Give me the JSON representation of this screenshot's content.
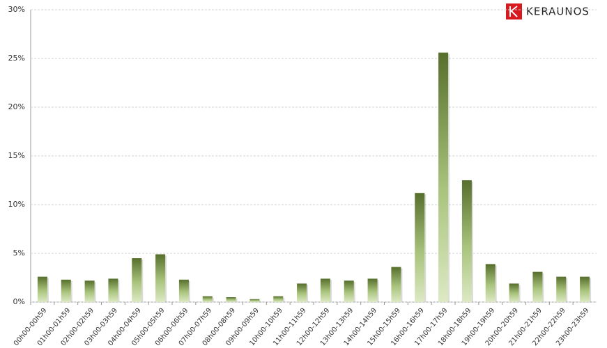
{
  "brand": "KERAUNOS",
  "chart_data": {
    "type": "bar",
    "categories": [
      "00h00-00h59",
      "01h00-01h59",
      "02h00-02h59",
      "03h00-03h59",
      "04h00-04h59",
      "05h00-05h59",
      "06h00-06h59",
      "07h00-07h59",
      "08h00-08h59",
      "09h00-09h59",
      "10h00-10h59",
      "11h00-11h59",
      "12h00-12h59",
      "13h00-13h59",
      "14h00-14h59",
      "15h00-15h59",
      "16h00-16h59",
      "17h00-17h59",
      "18h00-18h59",
      "19h00-19h59",
      "20h00-20h59",
      "21h00-21h59",
      "22h00-22h59",
      "23h00-23h59"
    ],
    "values": [
      2.6,
      2.3,
      2.2,
      2.4,
      4.5,
      4.9,
      2.3,
      0.6,
      0.5,
      0.3,
      0.6,
      1.9,
      2.4,
      2.2,
      2.4,
      3.6,
      11.2,
      25.6,
      12.5,
      3.9,
      1.9,
      3.1,
      2.6,
      2.6
    ],
    "color": "#566f2c",
    "ylim": [
      0,
      30
    ],
    "yticks": [
      {
        "value": 0,
        "label": "0%"
      },
      {
        "value": 5,
        "label": "5%"
      },
      {
        "value": 10,
        "label": "10%"
      },
      {
        "value": 15,
        "label": "15%"
      },
      {
        "value": 20,
        "label": "20%"
      },
      {
        "value": 25,
        "label": "25%"
      },
      {
        "value": 30,
        "label": "30%"
      }
    ],
    "grid": true
  }
}
